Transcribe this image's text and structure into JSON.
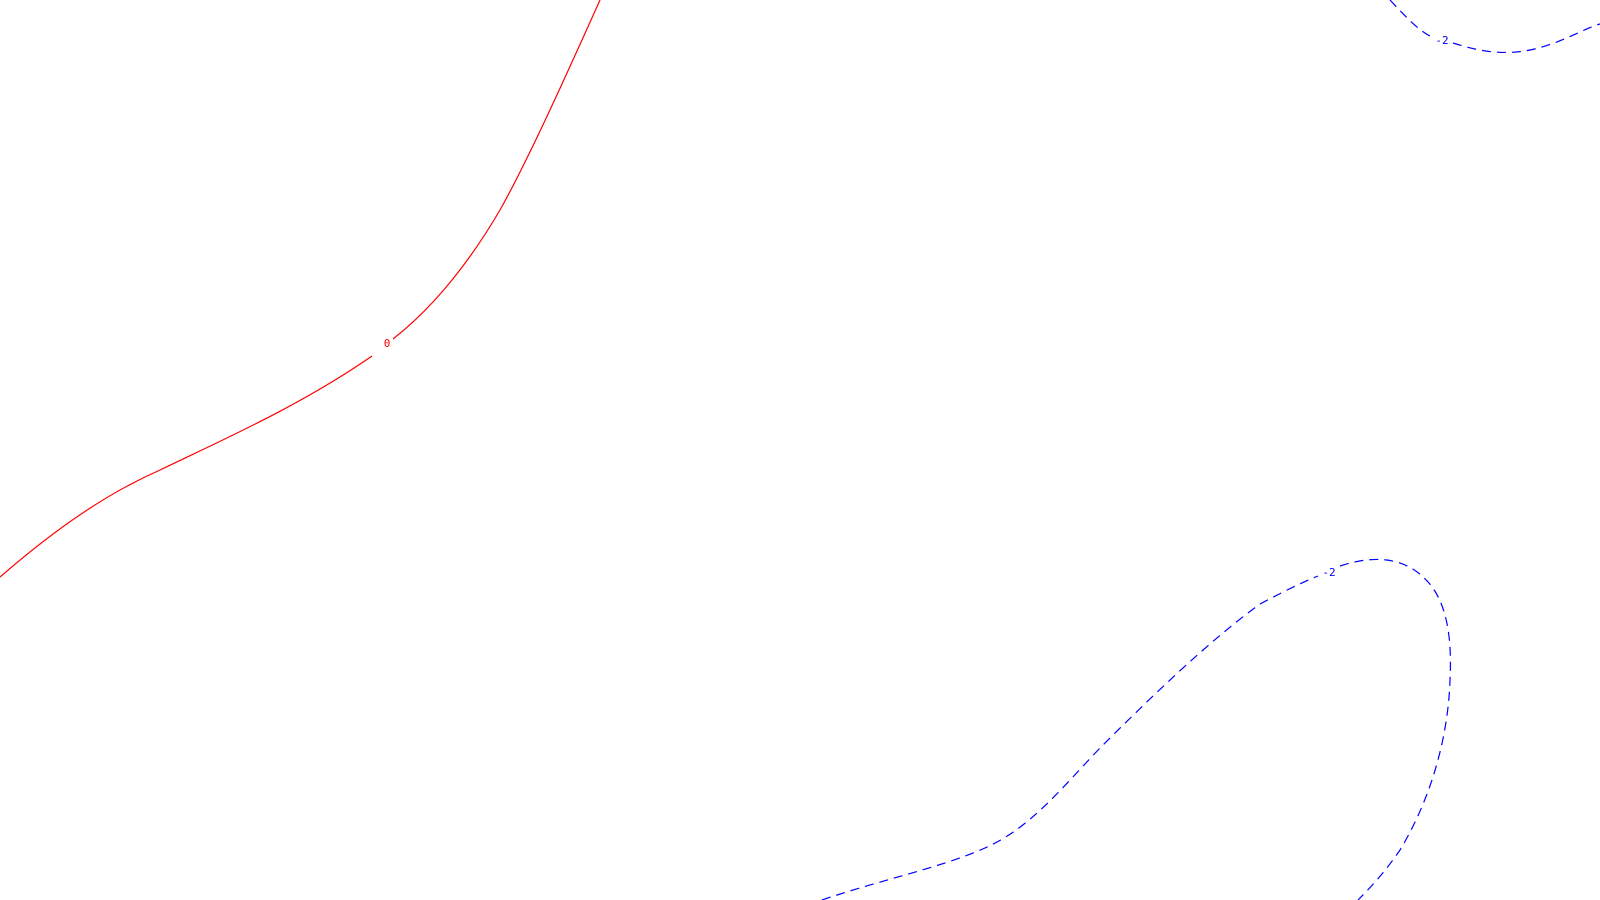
{
  "colors": {
    "background": "#ffffff",
    "zero_contour": "#ff0000",
    "negative_contour": "#0000ff"
  },
  "contours": [
    {
      "level_label": "0",
      "color": "#ff0000",
      "style": "solid"
    },
    {
      "level_label": "-2",
      "color": "#0000ff",
      "style": "dashed"
    },
    {
      "level_label": "-2",
      "color": "#0000ff",
      "style": "dashed"
    }
  ]
}
